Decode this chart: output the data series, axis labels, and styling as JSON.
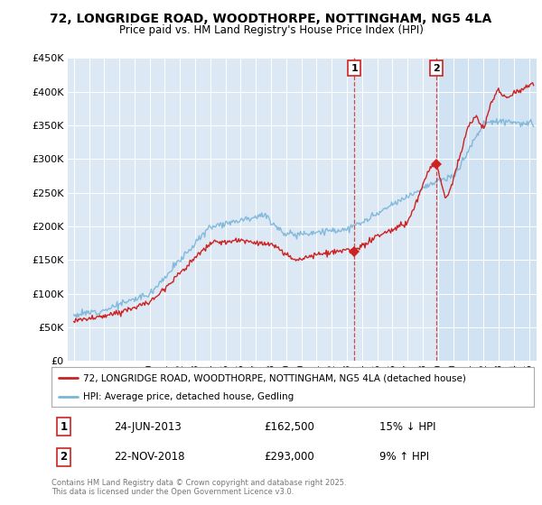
{
  "title": "72, LONGRIDGE ROAD, WOODTHORPE, NOTTINGHAM, NG5 4LA",
  "subtitle": "Price paid vs. HM Land Registry's House Price Index (HPI)",
  "ylim": [
    0,
    450000
  ],
  "ytick_values": [
    0,
    50000,
    100000,
    150000,
    200000,
    250000,
    300000,
    350000,
    400000,
    450000
  ],
  "plot_bg_color": "#dce9f5",
  "line_color_hpi": "#7ab4d8",
  "line_color_paid": "#cc2222",
  "legend_label_paid": "72, LONGRIDGE ROAD, WOODTHORPE, NOTTINGHAM, NG5 4LA (detached house)",
  "legend_label_hpi": "HPI: Average price, detached house, Gedling",
  "transaction1_date": "24-JUN-2013",
  "transaction1_price": "£162,500",
  "transaction1_note": "15% ↓ HPI",
  "transaction2_date": "22-NOV-2018",
  "transaction2_price": "£293,000",
  "transaction2_note": "9% ↑ HPI",
  "footer": "Contains HM Land Registry data © Crown copyright and database right 2025.\nThis data is licensed under the Open Government Licence v3.0.",
  "marker1_x": 2013.48,
  "marker2_x": 2018.9,
  "marker1_y": 162500,
  "marker2_y": 293000,
  "highlight2_start": 2018.9,
  "highlight2_end": 2025.5,
  "xlim_left": 1994.6,
  "xlim_right": 2025.5
}
